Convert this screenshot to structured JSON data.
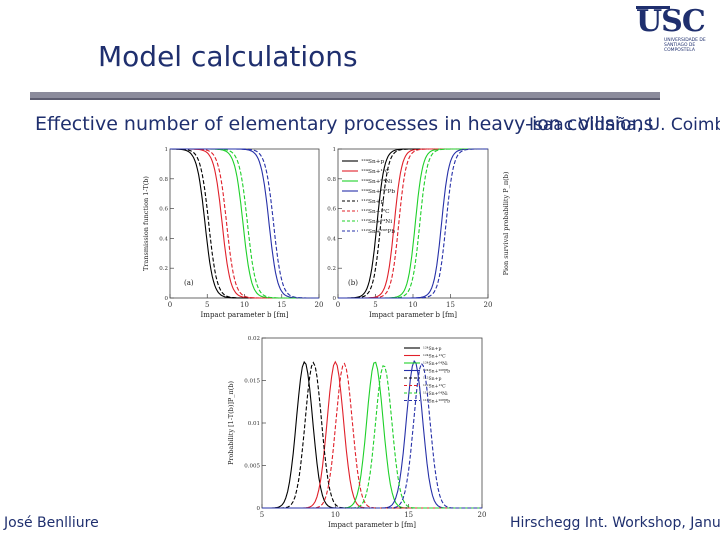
{
  "slide": {
    "title": "Model calculations",
    "subtitle_main": "Effective number of elementary processes in heavy-ion collisions",
    "subtitle_overlap": "Isaac Vidaña, U. Coimb",
    "footer_left": "José Benlliure",
    "footer_right": "Hirschegg Int. Workshop, Janua",
    "logo": {
      "text": "USC",
      "small_text": "UNIVERSIDADE DE SANTIAGO DE COMPOSTELA"
    }
  },
  "colors": {
    "navy": "#1f2f6e",
    "black": "#000000",
    "red": "#e0202a",
    "green": "#1fd02a",
    "blue": "#2630a8"
  },
  "chart_data": [
    {
      "type": "line",
      "panel_label": "(a)",
      "xlabel": "Impact parameter b [fm]",
      "ylabel": "Transmission function 1-T(b)",
      "xlim": [
        0,
        20
      ],
      "ylim": [
        0,
        1
      ],
      "xticks": [
        0,
        5,
        10,
        15,
        20
      ],
      "yticks": [
        0,
        0.2,
        0.4,
        0.6,
        0.8,
        1
      ],
      "curves": "sigmoid",
      "series": [
        {
          "color": "black",
          "dash": false,
          "center": 4.7
        },
        {
          "color": "red",
          "dash": false,
          "center": 7.0
        },
        {
          "color": "green",
          "dash": false,
          "center": 9.8
        },
        {
          "color": "blue",
          "dash": false,
          "center": 13.3
        },
        {
          "color": "black",
          "dash": true,
          "center": 5.2
        },
        {
          "color": "red",
          "dash": true,
          "center": 7.6
        },
        {
          "color": "green",
          "dash": true,
          "center": 10.4
        },
        {
          "color": "blue",
          "dash": true,
          "center": 13.9
        }
      ]
    },
    {
      "type": "line",
      "panel_label": "(b)",
      "xlabel": "Impact parameter b [fm]",
      "ylabel": "Pion survival probability P_π(b)",
      "xlim": [
        0,
        20
      ],
      "ylim": [
        0,
        1
      ],
      "xticks": [
        0,
        5,
        10,
        15,
        20
      ],
      "yticks": [
        0,
        0.2,
        0.4,
        0.6,
        0.8,
        1
      ],
      "curves": "rising",
      "legend": [
        "¹²⁴Sn+p",
        "¹²⁴Sn+¹²C",
        "¹²⁴Sn+⁶⁴Ni",
        "¹²⁴Sn+²⁰⁸Pb",
        "¹¹²Sn+p",
        "¹¹²Sn+¹²C",
        "¹¹²Sn+⁶⁴Ni",
        "¹¹²Sn+²⁰⁸Pb"
      ],
      "series": [
        {
          "color": "black",
          "dash": false,
          "center": 5.2
        },
        {
          "color": "red",
          "dash": false,
          "center": 7.5
        },
        {
          "color": "green",
          "dash": false,
          "center": 10.3
        },
        {
          "color": "blue",
          "dash": false,
          "center": 13.8
        },
        {
          "color": "black",
          "dash": true,
          "center": 5.7
        },
        {
          "color": "red",
          "dash": true,
          "center": 8.1
        },
        {
          "color": "green",
          "dash": true,
          "center": 10.9
        },
        {
          "color": "blue",
          "dash": true,
          "center": 14.4
        }
      ]
    },
    {
      "type": "line",
      "xlabel": "Impact parameter b [fm]",
      "ylabel": "Probability [1-T(b)]P_π(b)",
      "xlim": [
        5,
        20
      ],
      "ylim": [
        0,
        0.02
      ],
      "xticks": [
        5,
        10,
        15,
        20
      ],
      "yticks": [
        0,
        0.005,
        0.01,
        0.015,
        0.02
      ],
      "curves": "peak",
      "legend": [
        "¹²⁴Sn+p",
        "¹²⁴Sn+¹²C",
        "¹²⁴Sn+⁶⁴Ni",
        "¹²⁴Sn+²⁰⁸Pb",
        "¹¹²Sn+p",
        "¹¹²Sn+¹²C",
        "¹¹²Sn+⁶⁴Ni",
        "¹¹²Sn+²⁰⁸Pb"
      ],
      "series": [
        {
          "color": "black",
          "dash": false,
          "center": 7.9,
          "peak": 0.0172
        },
        {
          "color": "red",
          "dash": false,
          "center": 10.0,
          "peak": 0.0172
        },
        {
          "color": "green",
          "dash": false,
          "center": 12.7,
          "peak": 0.0172
        },
        {
          "color": "blue",
          "dash": false,
          "center": 15.4,
          "peak": 0.0173
        },
        {
          "color": "black",
          "dash": true,
          "center": 8.5,
          "peak": 0.0171
        },
        {
          "color": "red",
          "dash": true,
          "center": 10.6,
          "peak": 0.017
        },
        {
          "color": "green",
          "dash": true,
          "center": 13.3,
          "peak": 0.0168
        },
        {
          "color": "blue",
          "dash": true,
          "center": 15.9,
          "peak": 0.017
        }
      ]
    }
  ]
}
